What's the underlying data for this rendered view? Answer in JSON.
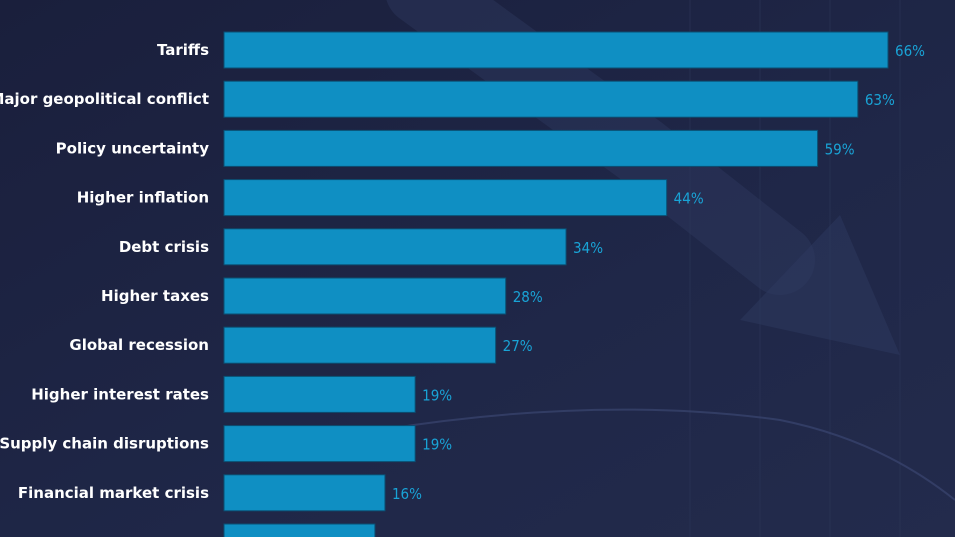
{
  "colors": {
    "background": "#1b2140",
    "bar": "#0f8fc3",
    "bar_edge": "#0a4f73",
    "value_label": "#19a3d6",
    "category_label": "#ffffff"
  },
  "chart_data": {
    "type": "bar",
    "orientation": "horizontal",
    "categories": [
      "Tariffs",
      "Major geopolitical conflict",
      "Policy uncertainty",
      "Higher inflation",
      "Debt crisis",
      "Higher taxes",
      "Global recession",
      "Higher interest rates",
      "Supply chain disruptions",
      "Financial market crisis"
    ],
    "values": [
      66,
      63,
      59,
      44,
      34,
      28,
      27,
      19,
      19,
      16
    ],
    "value_labels": [
      "66%",
      "63%",
      "59%",
      "44%",
      "34%",
      "28%",
      "27%",
      "19%",
      "19%",
      "16%"
    ],
    "partial_bar_value": 15,
    "unit": "%",
    "xlim": [
      0,
      66
    ],
    "grid": false,
    "legend": "none"
  }
}
